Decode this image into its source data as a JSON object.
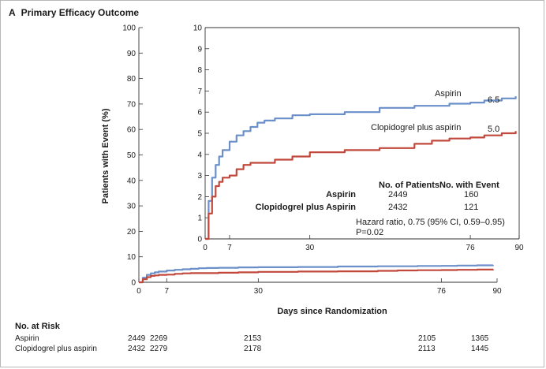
{
  "panel": {
    "letter": "A",
    "title": "Primary Efficacy Outcome"
  },
  "chart_data": [
    {
      "type": "line",
      "name": "main",
      "ylabel": "Patients with Event (%)",
      "xlabel": "Days since Randomization",
      "ylim": [
        0,
        100
      ],
      "xlim": [
        0,
        90
      ],
      "yticks": [
        0,
        10,
        20,
        30,
        40,
        50,
        60,
        70,
        80,
        90,
        100
      ],
      "xticks": [
        0,
        7,
        30,
        76,
        90
      ],
      "series": [
        {
          "name": "Aspirin",
          "color": "#6a8fc9",
          "x": [
            0,
            1,
            2,
            3,
            4,
            5,
            7,
            9,
            11,
            13,
            15,
            17,
            20,
            25,
            30,
            40,
            50,
            60,
            70,
            76,
            80,
            85,
            89
          ],
          "y": [
            0,
            1.8,
            2.9,
            3.5,
            3.9,
            4.2,
            4.6,
            4.9,
            5.1,
            5.3,
            5.5,
            5.6,
            5.7,
            5.85,
            5.9,
            6.0,
            6.2,
            6.3,
            6.4,
            6.45,
            6.55,
            6.65,
            6.75
          ]
        },
        {
          "name": "Clopidogrel plus aspirin",
          "color": "#c1483b",
          "x": [
            0,
            1,
            2,
            3,
            4,
            5,
            7,
            9,
            11,
            13,
            15,
            20,
            25,
            30,
            40,
            50,
            60,
            65,
            70,
            76,
            80,
            85,
            89
          ],
          "y": [
            0,
            1.2,
            2.0,
            2.5,
            2.7,
            2.9,
            3.0,
            3.3,
            3.5,
            3.6,
            3.6,
            3.75,
            3.9,
            4.1,
            4.2,
            4.3,
            4.5,
            4.65,
            4.75,
            4.8,
            4.9,
            5.0,
            5.1
          ]
        }
      ]
    },
    {
      "type": "line",
      "name": "inset",
      "ylim": [
        0,
        10
      ],
      "xlim": [
        0,
        90
      ],
      "yticks": [
        0,
        1,
        2,
        3,
        4,
        5,
        6,
        7,
        8,
        9,
        10
      ],
      "xticks": [
        0,
        7,
        30,
        76,
        90
      ],
      "annotations": [
        {
          "text": "Aspirin",
          "final": "6.5"
        },
        {
          "text": "Clopidogrel plus aspirin",
          "final": "5.0"
        }
      ]
    }
  ],
  "inset_table": {
    "headers": [
      "No. of Patients",
      "No. with Event"
    ],
    "rows": [
      {
        "label": "Aspirin",
        "patients": "2449",
        "events": "160"
      },
      {
        "label": "Clopidogrel plus Aspirin",
        "patients": "2432",
        "events": "121"
      }
    ],
    "hazard": "Hazard ratio, 0.75 (95% CI, 0.59–0.95)",
    "pvalue": "P=0.02"
  },
  "risk_table": {
    "heading": "No. at Risk",
    "rows": [
      {
        "label": "Aspirin",
        "values": [
          "2449",
          "2269",
          "2153",
          "2105",
          "1365"
        ]
      },
      {
        "label": "Clopidogrel plus aspirin",
        "values": [
          "2432",
          "2279",
          "2178",
          "2113",
          "1445"
        ]
      }
    ]
  }
}
